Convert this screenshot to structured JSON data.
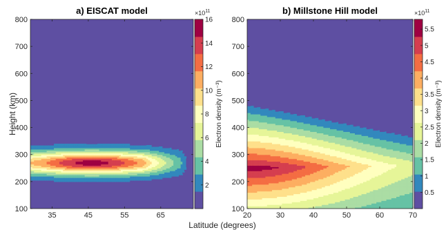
{
  "chart_data": [
    {
      "type": "heatmap",
      "panel": "a",
      "title": "a) EISCAT model",
      "xlabel": "",
      "ylabel": "Height (km)",
      "xlim": [
        29,
        74
      ],
      "ylim": [
        100,
        800
      ],
      "xticks": [
        35,
        45,
        55,
        65
      ],
      "yticks": [
        100,
        200,
        300,
        400,
        500,
        600,
        700,
        800
      ],
      "colorbar": {
        "label": "Electron density (m⁻³)",
        "exponent": "×10",
        "exponent_power": "11",
        "range": [
          0,
          16
        ],
        "ticks": [
          2,
          4,
          6,
          8,
          10,
          12,
          14,
          16
        ]
      },
      "peak": {
        "latitude": 46,
        "height_km": 265,
        "density": 16
      },
      "layer": {
        "latitude_end": 73,
        "height_km": 270,
        "thickness_km": 60,
        "background_density": 0
      }
    },
    {
      "type": "heatmap",
      "panel": "b",
      "title": "b) Millstone Hill model",
      "xlabel": "",
      "ylabel": "",
      "xlim": [
        20,
        70
      ],
      "ylim": [
        100,
        800
      ],
      "xticks": [
        20,
        30,
        40,
        50,
        60,
        70
      ],
      "yticks": [
        100,
        200,
        300,
        400,
        500,
        600,
        700,
        800
      ],
      "colorbar": {
        "label": "Electron density (m⁻³)",
        "exponent": "×10",
        "exponent_power": "11",
        "range": [
          0,
          5.8
        ],
        "ticks": [
          0.5,
          1,
          1.5,
          2,
          2.5,
          3,
          3.5,
          4,
          4.5,
          5,
          5.5
        ]
      },
      "peak": {
        "latitude": 20,
        "height_km": 252,
        "density": 5.8
      },
      "layer": {
        "top_height_km_at_20": 495,
        "top_height_km_at_70": 380
      }
    }
  ],
  "shared_xlabel": "Latitude (degrees)",
  "colormap": [
    "#5e4fa2",
    "#3288bd",
    "#66c2a5",
    "#abdda4",
    "#e6f598",
    "#ffffbf",
    "#fee08b",
    "#fdae61",
    "#f46d43",
    "#d53e4f",
    "#9e0142"
  ]
}
